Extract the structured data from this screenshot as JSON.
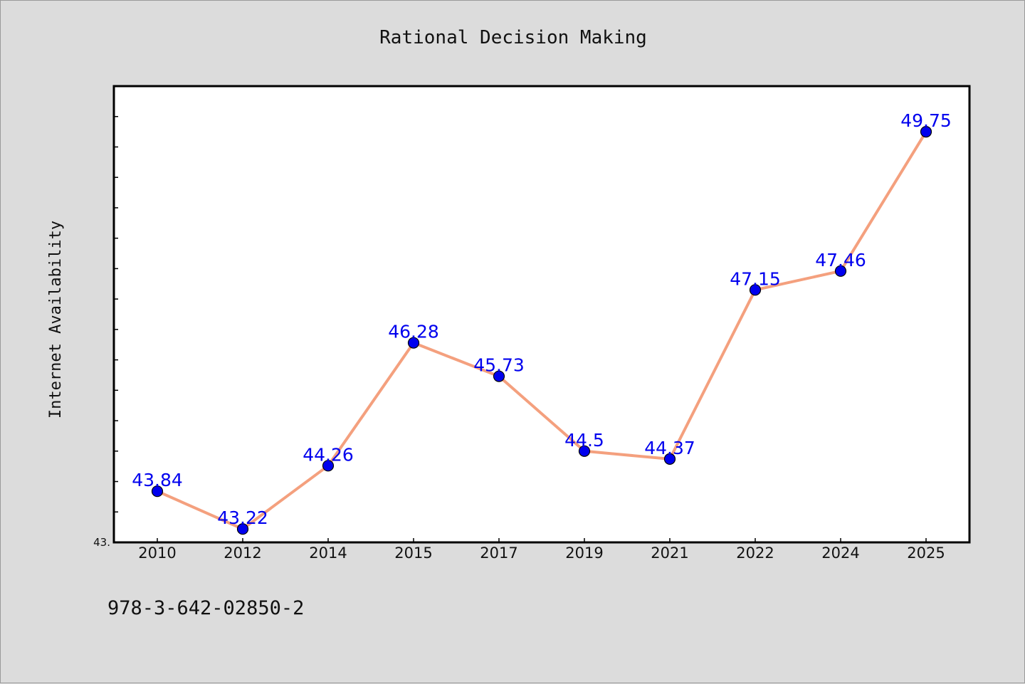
{
  "chart_data": {
    "type": "line",
    "title": "Rational Decision Making",
    "xlabel": "",
    "ylabel": "Internet Availability",
    "categories": [
      "2010",
      "2012",
      "2014",
      "2015",
      "2017",
      "2019",
      "2021",
      "2022",
      "2024",
      "2025"
    ],
    "series": [
      {
        "values": [
          43.84,
          43.22,
          44.26,
          46.28,
          45.73,
          44.5,
          44.37,
          47.15,
          47.46,
          49.75
        ],
        "line_color": "#f4a07e",
        "marker_color": "#0000ee"
      }
    ],
    "data_labels": [
      "43.84",
      "43.22",
      "44.26",
      "46.28",
      "45.73",
      "44.5",
      "44.37",
      "47.15",
      "47.46",
      "49.75"
    ],
    "ylim": [
      43.0,
      50.5
    ],
    "y_tick_label": "43.",
    "grid": false,
    "legend": "none"
  },
  "footer": {
    "identifier": "978-3-642-02850-2"
  }
}
